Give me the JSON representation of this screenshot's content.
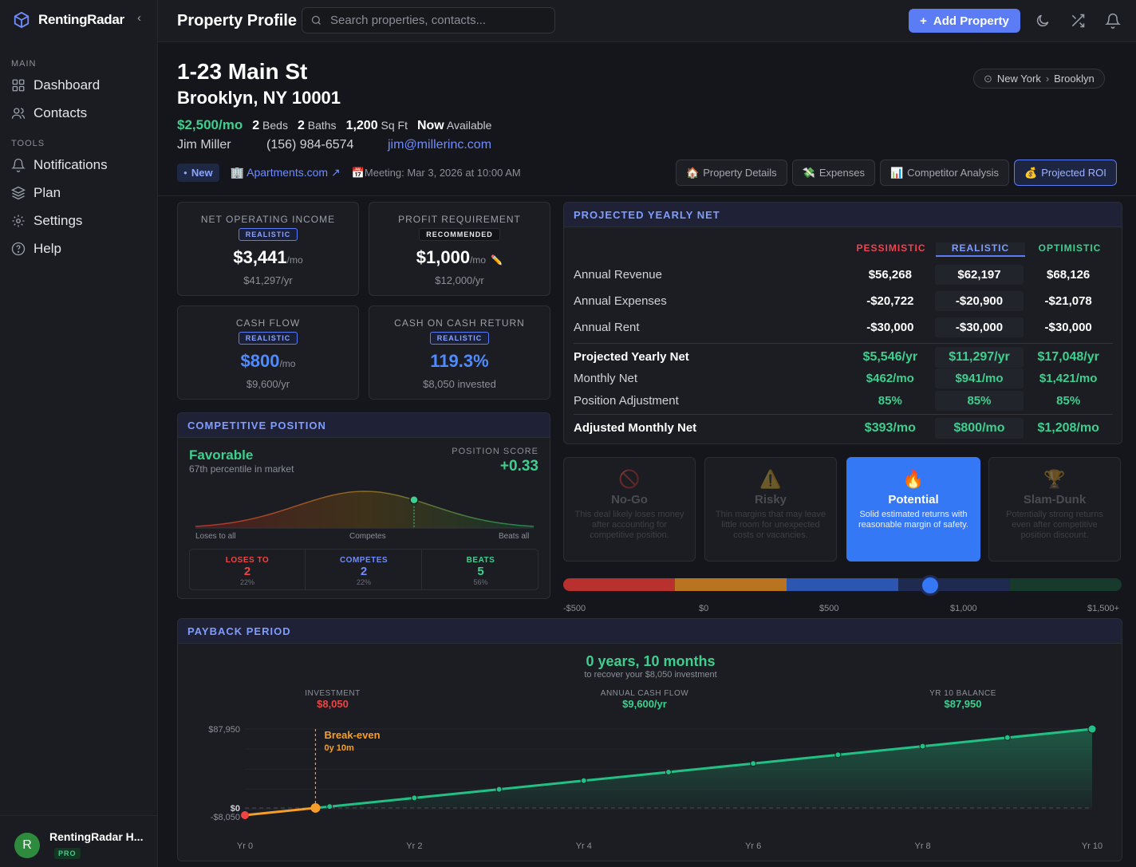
{
  "app": {
    "name": "RentingRadar"
  },
  "sidebar": {
    "sections": [
      "MAIN",
      "TOOLS"
    ],
    "items": [
      {
        "label": "Dashboard"
      },
      {
        "label": "Contacts"
      },
      {
        "label": "Notifications"
      },
      {
        "label": "Plan"
      },
      {
        "label": "Settings"
      },
      {
        "label": "Help"
      }
    ],
    "user": {
      "initial": "R",
      "name": "RentingRadar H...",
      "plan": "PRO"
    }
  },
  "topbar": {
    "title": "Property Profile",
    "search_placeholder": "Search properties, contacts...",
    "add_label": "Add Property"
  },
  "property": {
    "address_line1": "1-23 Main St",
    "address_line2": "Brooklyn, NY 10001",
    "rent": "$2,500/mo",
    "beds": "2",
    "beds_label": "Beds",
    "baths": "2",
    "baths_label": "Baths",
    "sqft": "1,200",
    "sqft_label": "Sq Ft",
    "available": "Now",
    "available_label": "Available",
    "contact_name": "Jim Miller",
    "contact_phone": "(156) 984-6574",
    "contact_email": "jim@millerinc.com",
    "status": "New",
    "source": "Apartments.com",
    "meeting": "Meeting: Mar 3, 2026 at 10:00 AM",
    "location": [
      "New York",
      "Brooklyn"
    ]
  },
  "tabs": [
    "Property Details",
    "Expenses",
    "Competitor Analysis",
    "Projected ROI"
  ],
  "metrics": {
    "noi": {
      "label": "NET OPERATING INCOME",
      "tag": "REALISTIC",
      "value": "$3,441",
      "unit": "/mo",
      "sub": "$41,297/yr"
    },
    "profit": {
      "label": "PROFIT REQUIREMENT",
      "tag": "RECOMMENDED",
      "value": "$1,000",
      "unit": "/mo",
      "sub": "$12,000/yr"
    },
    "cashflow": {
      "label": "CASH FLOW",
      "tag": "REALISTIC",
      "value": "$800",
      "unit": "/mo",
      "sub": "$9,600/yr"
    },
    "coc": {
      "label": "CASH ON CASH RETURN",
      "tag": "REALISTIC",
      "value": "119.3%",
      "sub": "$8,050 invested"
    }
  },
  "competitive": {
    "title": "COMPETITIVE POSITION",
    "verdict": "Favorable",
    "percentile": "67th percentile in market",
    "score_label": "POSITION SCORE",
    "score": "+0.33",
    "axis": [
      "Loses to all",
      "Competes",
      "Beats all"
    ],
    "percentile_value": 0.67,
    "counts": [
      {
        "label": "LOSES TO",
        "value": "2",
        "pct": "22%",
        "color": "#ef4444"
      },
      {
        "label": "COMPETES",
        "value": "2",
        "pct": "22%",
        "color": "#6f8cff"
      },
      {
        "label": "BEATS",
        "value": "5",
        "pct": "56%",
        "color": "#3ecf8e"
      }
    ]
  },
  "projected": {
    "title": "PROJECTED YEARLY NET",
    "columns": [
      {
        "label": "PESSIMISTIC",
        "color": "#f0434f"
      },
      {
        "label": "REALISTIC",
        "color": "#7f9cff"
      },
      {
        "label": "OPTIMISTIC",
        "color": "#3ecf8e"
      }
    ],
    "rows": [
      {
        "label": "Annual Revenue",
        "values": [
          "$56,268",
          "$62,197",
          "$68,126"
        ]
      },
      {
        "label": "Annual Expenses",
        "values": [
          "-$20,722",
          "-$20,900",
          "-$21,078"
        ]
      },
      {
        "label": "Annual Rent",
        "values": [
          "-$30,000",
          "-$30,000",
          "-$30,000"
        ]
      },
      {
        "label": "Projected Yearly Net",
        "values": [
          "$5,546/yr",
          "$11,297/yr",
          "$17,048/yr"
        ]
      },
      {
        "label": "Monthly Net",
        "values": [
          "$462/mo",
          "$941/mo",
          "$1,421/mo"
        ]
      },
      {
        "label": "Position Adjustment",
        "values": [
          "85%",
          "85%",
          "85%"
        ]
      },
      {
        "label": "Adjusted Monthly Net",
        "values": [
          "$393/mo",
          "$800/mo",
          "$1,208/mo"
        ]
      }
    ]
  },
  "verdicts": [
    {
      "title": "No-Go",
      "icon": "prohibited-icon",
      "desc": "This deal likely loses money after accounting for competitive position."
    },
    {
      "title": "Risky",
      "icon": "warning-icon",
      "desc": "Thin margins that may leave little room for unexpected costs or vacancies."
    },
    {
      "title": "Potential",
      "icon": "fire-icon",
      "desc": "Solid estimated returns with reasonable margin of safety."
    },
    {
      "title": "Slam-Dunk",
      "icon": "trophy-icon",
      "desc": "Potentially strong returns even after competitive position discount."
    }
  ],
  "scale": {
    "labels": [
      "-$500",
      "$0",
      "$500",
      "$1,000",
      "$1,500+"
    ],
    "value": 800,
    "min": -500,
    "max": 1500
  },
  "payback": {
    "title": "PAYBACK PERIOD",
    "headline": "0 years, 10 months",
    "subline": "to recover your $8,050 investment",
    "investment_label": "INVESTMENT",
    "investment": "$8,050",
    "cashflow_label": "ANNUAL CASH FLOW",
    "cashflow": "$9,600/yr",
    "balance_label": "YR 10 BALANCE",
    "balance": "$87,950",
    "breakeven_label": "Break-even",
    "breakeven_sub": "0y 10m"
  },
  "chart_data": {
    "type": "area",
    "x": [
      0,
      0.833,
      1,
      2,
      3,
      4,
      5,
      6,
      7,
      8,
      9,
      10
    ],
    "y": [
      -8050,
      0,
      1550,
      11150,
      20750,
      30350,
      39950,
      49550,
      59150,
      68750,
      78350,
      87950
    ],
    "xticks": [
      "Yr 0",
      "Yr 2",
      "Yr 4",
      "Yr 6",
      "Yr 8",
      "Yr 10"
    ],
    "yticks": [
      "$87,950",
      "$0",
      "-$8,050"
    ],
    "ylim": [
      -8050,
      87950
    ],
    "xlim": [
      0,
      10
    ],
    "breakeven_x": 0.833
  }
}
